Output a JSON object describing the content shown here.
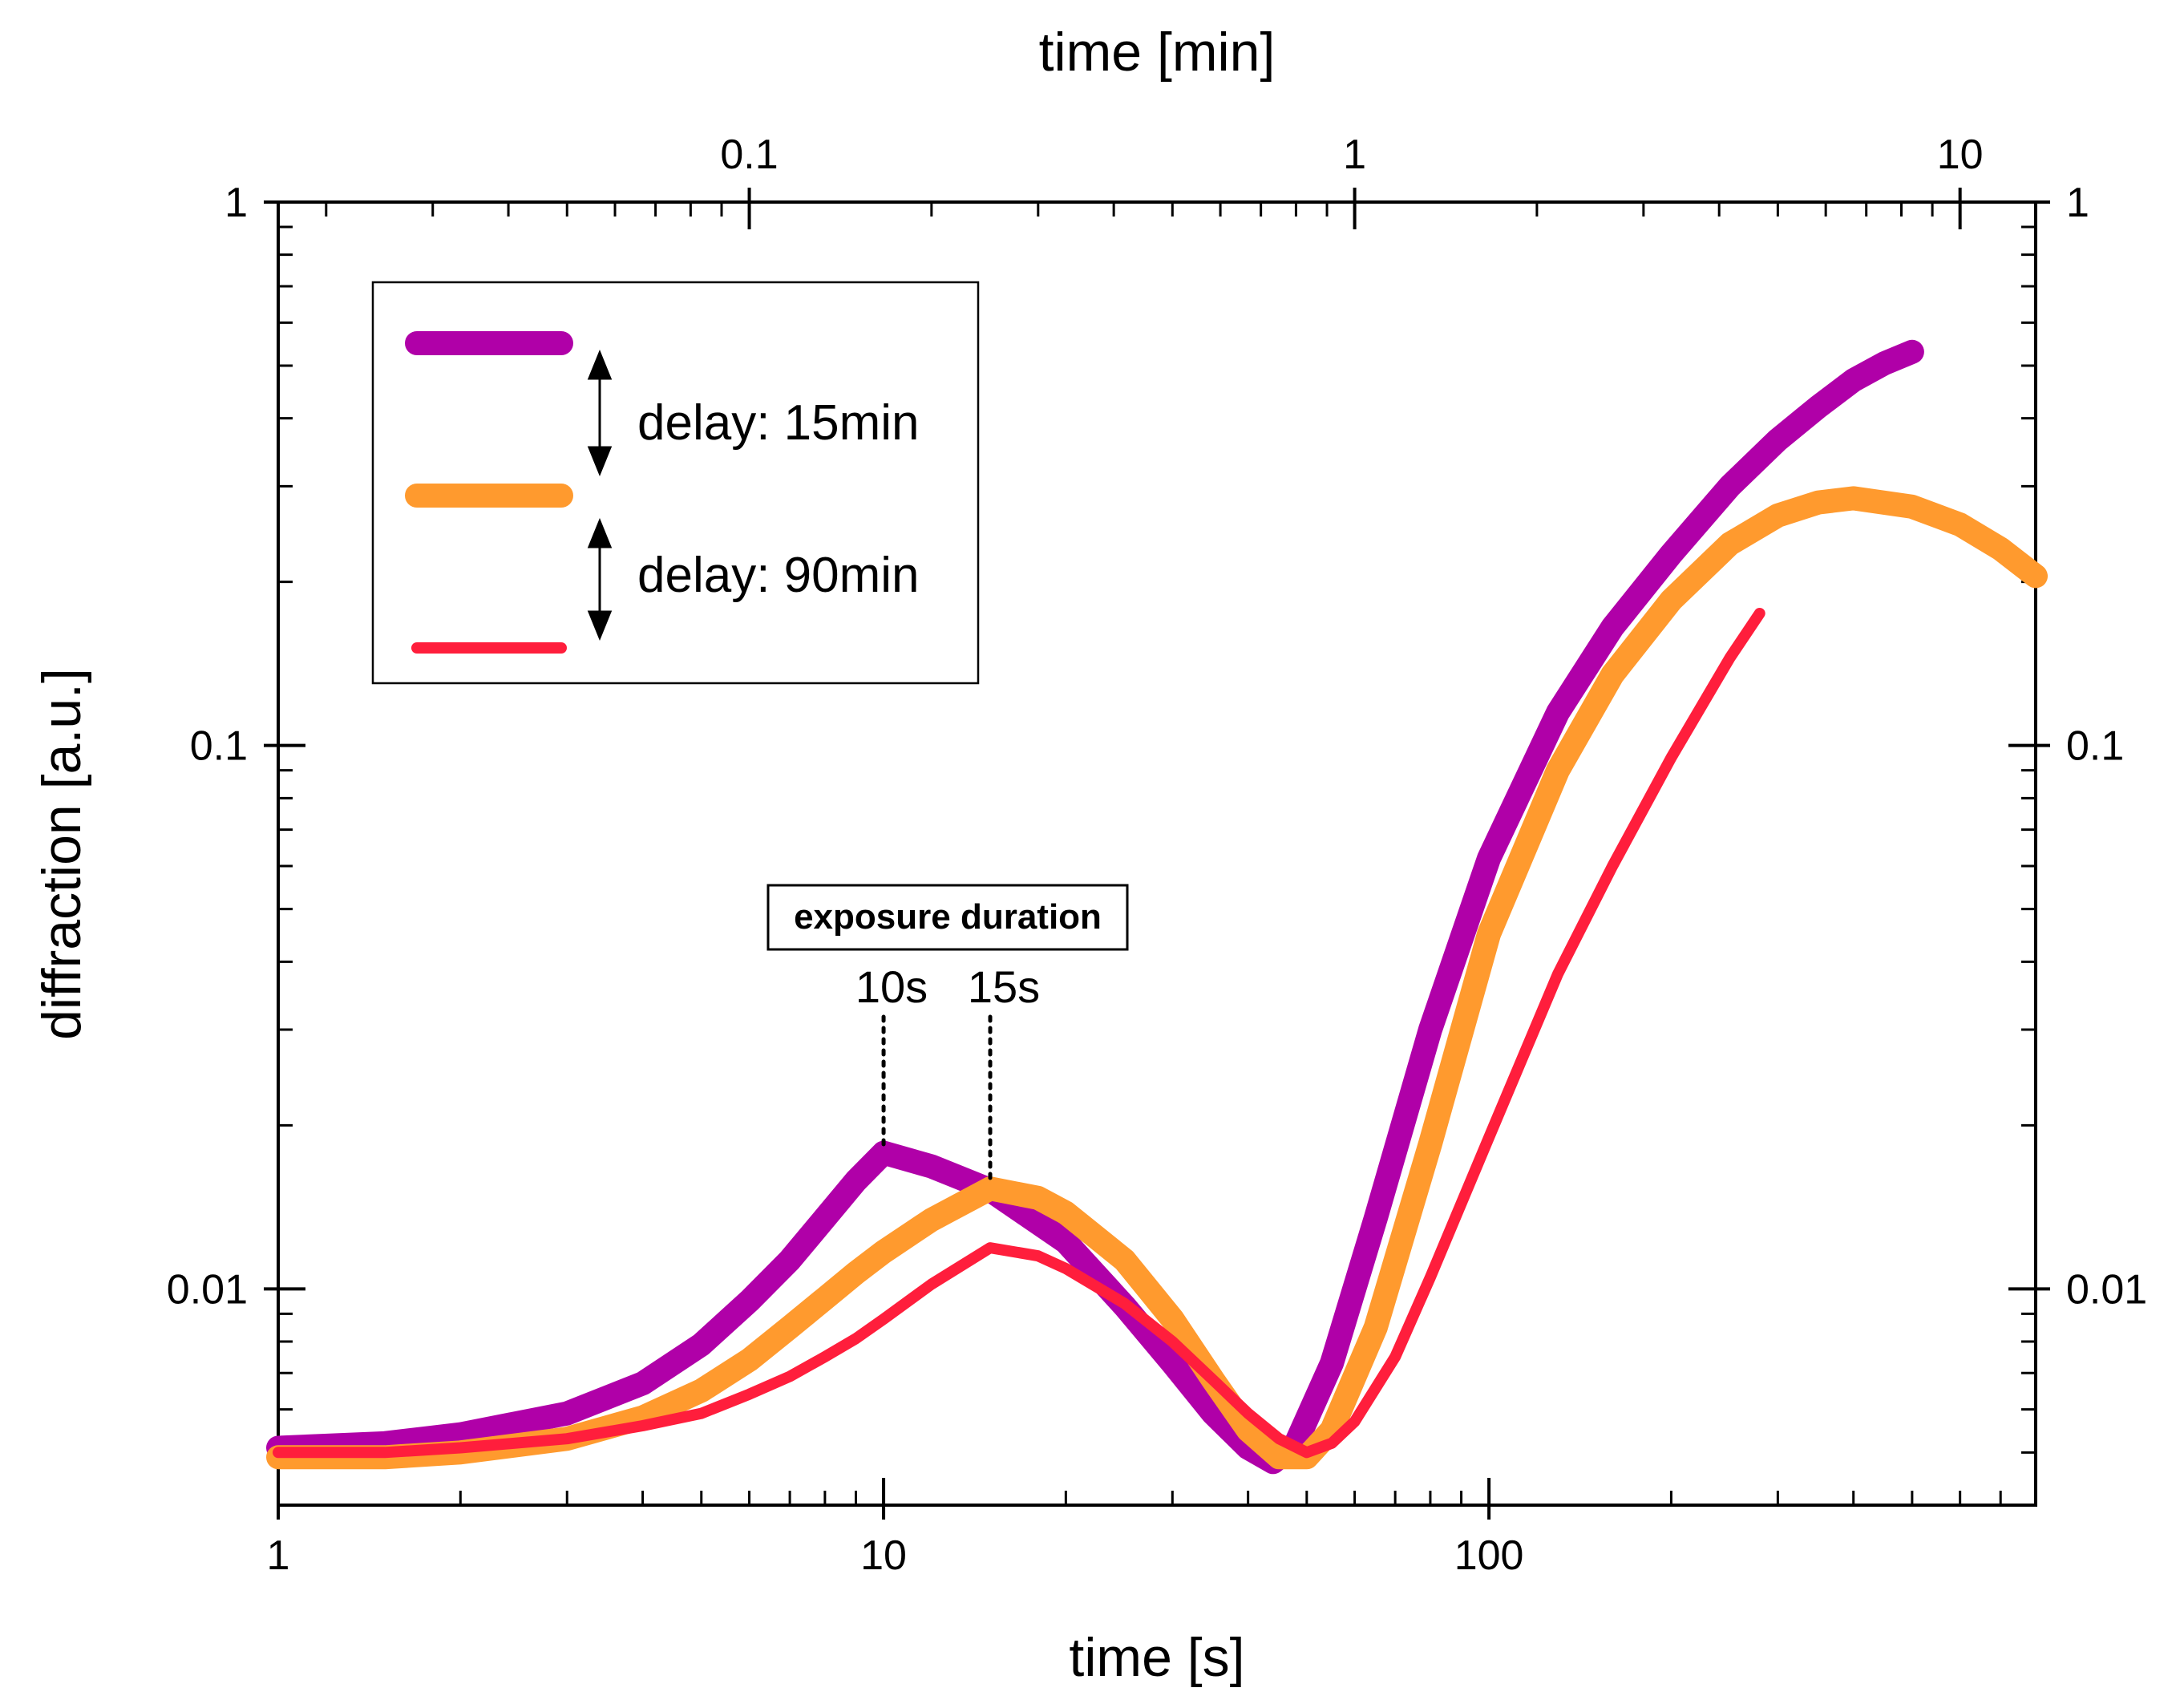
{
  "chart_data": {
    "type": "line",
    "xlabel": "time [s]",
    "x2label": "time [min]",
    "ylabel": "diffraction [a.u.]",
    "xscale": "log",
    "yscale": "log",
    "xlim": [
      1,
      800
    ],
    "x2lim": [
      0.01667,
      13.33
    ],
    "ylim": [
      0.004,
      1
    ],
    "x_ticks": [
      {
        "value": 1,
        "label": "1"
      },
      {
        "value": 10,
        "label": "10"
      },
      {
        "value": 100,
        "label": "100"
      }
    ],
    "x2_ticks": [
      {
        "value": 0.1,
        "label": "0.1"
      },
      {
        "value": 1,
        "label": "1"
      },
      {
        "value": 10,
        "label": "10"
      }
    ],
    "y_ticks": [
      {
        "value": 1,
        "label": "1"
      },
      {
        "value": 0.1,
        "label": "0.1"
      },
      {
        "value": 0.01,
        "label": "0.01"
      }
    ],
    "y2_ticks": [
      {
        "value": 1,
        "label": "1"
      },
      {
        "value": 0.1,
        "label": "0.1"
      },
      {
        "value": 0.01,
        "label": "0.01"
      }
    ],
    "series": [
      {
        "name": "exposure 10s",
        "color": "#B000A8",
        "x": [
          1,
          1.5,
          2,
          3,
          4,
          5,
          6,
          7,
          8,
          9,
          10,
          12,
          15,
          20,
          25,
          30,
          35,
          40,
          44,
          48,
          55,
          65,
          80,
          100,
          130,
          160,
          200,
          250,
          300,
          350,
          400,
          450,
          500
        ],
        "y": [
          0.0051,
          0.0052,
          0.0054,
          0.0059,
          0.0067,
          0.0079,
          0.0095,
          0.0113,
          0.0135,
          0.0158,
          0.0178,
          0.0168,
          0.0152,
          0.0122,
          0.0093,
          0.0073,
          0.0059,
          0.0051,
          0.0048,
          0.0052,
          0.0073,
          0.0135,
          0.03,
          0.062,
          0.115,
          0.165,
          0.225,
          0.3,
          0.365,
          0.42,
          0.47,
          0.505,
          0.53
        ]
      },
      {
        "name": "exposure 15s",
        "color": "#FF9A2E",
        "x": [
          1,
          1.5,
          2,
          3,
          4,
          5,
          6,
          7,
          8,
          9,
          10,
          12,
          15,
          18,
          20,
          25,
          30,
          35,
          40,
          45,
          50,
          55,
          65,
          80,
          100,
          130,
          160,
          200,
          250,
          300,
          350,
          400,
          500,
          600,
          700,
          800
        ],
        "y": [
          0.0049,
          0.0049,
          0.005,
          0.0053,
          0.0058,
          0.0065,
          0.0074,
          0.0085,
          0.0096,
          0.0107,
          0.0117,
          0.0134,
          0.0153,
          0.0147,
          0.0138,
          0.0113,
          0.0088,
          0.0068,
          0.0055,
          0.0049,
          0.0049,
          0.0055,
          0.0085,
          0.0185,
          0.045,
          0.09,
          0.135,
          0.185,
          0.235,
          0.265,
          0.28,
          0.285,
          0.275,
          0.255,
          0.23,
          0.205
        ]
      },
      {
        "name": "exposure 15s, delay 90min",
        "color": "#FF1E3C",
        "x": [
          1,
          1.5,
          2,
          3,
          4,
          5,
          6,
          7,
          8,
          9,
          10,
          12,
          15,
          18,
          20,
          25,
          30,
          35,
          40,
          45,
          50,
          55,
          60,
          70,
          80,
          100,
          130,
          160,
          200,
          250,
          280
        ],
        "y": [
          0.005,
          0.005,
          0.0051,
          0.0053,
          0.0056,
          0.0059,
          0.0064,
          0.0069,
          0.0075,
          0.0081,
          0.0088,
          0.0102,
          0.0119,
          0.0115,
          0.0109,
          0.0094,
          0.008,
          0.0068,
          0.0059,
          0.0053,
          0.005,
          0.0052,
          0.0057,
          0.0075,
          0.0105,
          0.019,
          0.038,
          0.06,
          0.095,
          0.145,
          0.175
        ]
      }
    ],
    "legend": {
      "position": "top-left",
      "texts": [
        "delay: 15min",
        "delay: 90min"
      ]
    },
    "annotations": {
      "box_label": "exposure duration",
      "markers": [
        {
          "label": "10s",
          "x": 10,
          "y": 0.0178
        },
        {
          "label": "15s",
          "x": 15,
          "y": 0.0153
        }
      ]
    }
  }
}
